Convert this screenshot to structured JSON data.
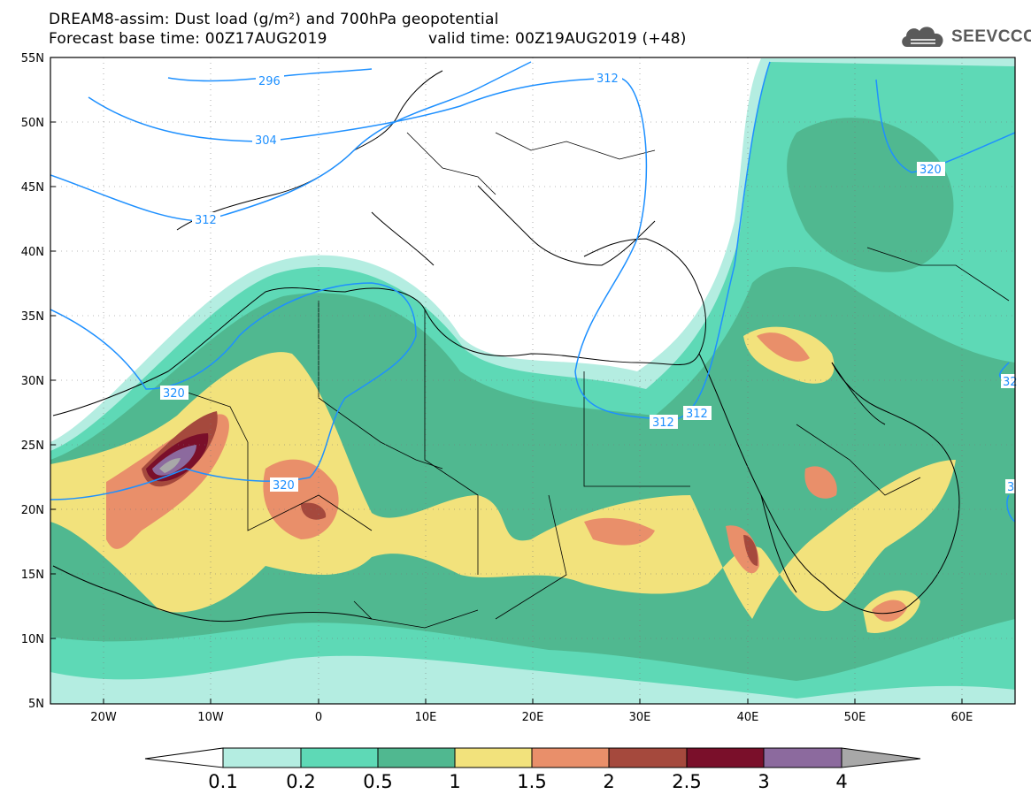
{
  "header": {
    "title_line1": "DREAM8-assim: Dust load (g/m²) and 700hPa geopotential",
    "base_time": "Forecast base time: 00Z17AUG2019",
    "valid_time": "valid time: 00Z19AUG2019 (+48)"
  },
  "logo": {
    "text": "SEEVCCC",
    "icon": "cloud-icon"
  },
  "axes": {
    "lat_labels": [
      "55N",
      "50N",
      "45N",
      "40N",
      "35N",
      "30N",
      "25N",
      "20N",
      "15N",
      "10N",
      "5N"
    ],
    "lon_labels": [
      "20W",
      "10W",
      "0",
      "10E",
      "20E",
      "30E",
      "40E",
      "50E",
      "60E"
    ]
  },
  "contours": {
    "labels": [
      "296",
      "304",
      "312",
      "312",
      "312",
      "312",
      "320",
      "320",
      "320",
      "32",
      "3"
    ]
  },
  "colorbar": {
    "labels": [
      "0.1",
      "0.2",
      "0.5",
      "1",
      "1.5",
      "2",
      "2.5",
      "3",
      "4"
    ],
    "colors": [
      "#ffffff",
      "#b4ede1",
      "#5ed9b6",
      "#50b890",
      "#f2e27c",
      "#e98f6a",
      "#a5493d",
      "#7a0f2a",
      "#8c6a9e",
      "#a8a8a8"
    ]
  }
}
